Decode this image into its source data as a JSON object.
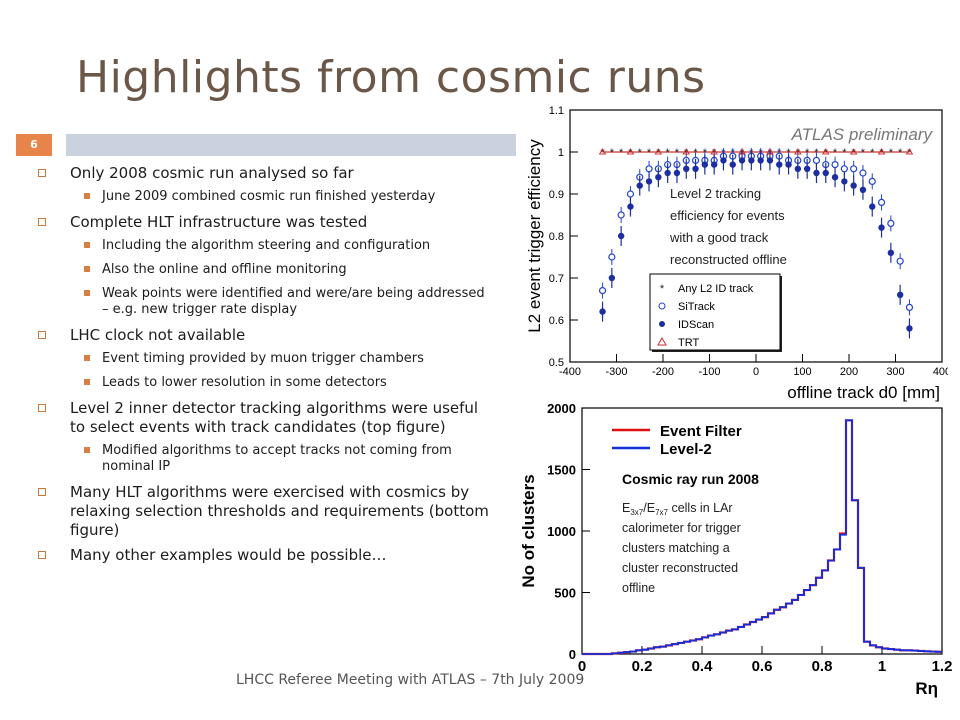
{
  "slide": {
    "title": "Highlights from cosmic runs",
    "page_number": "6",
    "footer": "LHCC Referee Meeting with ATLAS – 7th July 2009",
    "bullets": [
      {
        "text": "Only 2008 cosmic run analysed so far",
        "sub": [
          "June 2009 combined cosmic run finished yesterday"
        ]
      },
      {
        "text": "Complete HLT infrastructure was tested",
        "sub": [
          "Including the algorithm steering and configuration",
          "Also the online and offline monitoring",
          "Weak points were identified and were/are being addressed – e.g. new trigger rate display"
        ]
      },
      {
        "text": "LHC clock not available",
        "sub": [
          "Event timing provided by muon trigger chambers",
          "Leads to lower resolution in some detectors"
        ]
      },
      {
        "text": "Level 2 inner detector tracking algorithms were useful to select events with track candidates (top figure)",
        "sub": [
          "Modified algorithms to accept tracks not coming from nominal IP"
        ]
      },
      {
        "text": "Many HLT algorithms were exercised with cosmics by relaxing selection thresholds and requirements (bottom figure)",
        "sub": []
      },
      {
        "text": "Many other examples would be possible…",
        "sub": []
      }
    ],
    "accent_color": "#e6844a",
    "title_color": "#6b5748"
  },
  "chart_data": [
    {
      "type": "scatter",
      "title": "ATLAS preliminary",
      "xlabel": "offline track d0 [mm]",
      "ylabel": "L2 event trigger efficiency",
      "xlim": [
        -400,
        400
      ],
      "ylim": [
        0.5,
        1.1
      ],
      "x_ticks": [
        "-400",
        "-300",
        "-200",
        "-100",
        "0",
        "100",
        "200",
        "300",
        "400"
      ],
      "y_ticks": [
        "0.5",
        "0.6",
        "0.7",
        "0.8",
        "0.9",
        "1",
        "1.1"
      ],
      "annotation": "Level 2 tracking efficiency for events with a good track reconstructed offline",
      "legend_position": "lower-right",
      "x": [
        -330,
        -310,
        -290,
        -270,
        -250,
        -230,
        -210,
        -190,
        -170,
        -150,
        -130,
        -110,
        -90,
        -70,
        -50,
        -30,
        -10,
        10,
        30,
        50,
        70,
        90,
        110,
        130,
        150,
        170,
        190,
        210,
        230,
        250,
        270,
        290,
        310,
        330
      ],
      "series": [
        {
          "name": "Any L2 ID track",
          "marker": "star",
          "color": "#222222",
          "values": [
            1,
            1,
            1,
            1,
            1,
            1,
            1,
            1,
            1,
            1,
            1,
            1,
            1,
            1,
            1,
            1,
            1,
            1,
            1,
            1,
            1,
            1,
            1,
            1,
            1,
            1,
            1,
            1,
            1,
            1,
            1,
            1,
            1,
            1
          ]
        },
        {
          "name": "SiTrack",
          "marker": "open-circle",
          "color": "#2244cc",
          "values": [
            0.67,
            0.75,
            0.85,
            0.9,
            0.94,
            0.96,
            0.96,
            0.97,
            0.97,
            0.98,
            0.98,
            0.98,
            0.98,
            0.99,
            0.99,
            0.99,
            0.99,
            0.99,
            0.99,
            0.99,
            0.98,
            0.98,
            0.98,
            0.98,
            0.97,
            0.97,
            0.96,
            0.96,
            0.95,
            0.93,
            0.88,
            0.83,
            0.74,
            0.63
          ]
        },
        {
          "name": "IDScan",
          "marker": "filled-circle",
          "color": "#1d2fa0",
          "values": [
            0.62,
            0.7,
            0.8,
            0.87,
            0.92,
            0.93,
            0.94,
            0.95,
            0.95,
            0.96,
            0.96,
            0.97,
            0.97,
            0.98,
            0.97,
            0.98,
            0.98,
            0.98,
            0.98,
            0.97,
            0.97,
            0.96,
            0.96,
            0.95,
            0.95,
            0.94,
            0.93,
            0.92,
            0.91,
            0.87,
            0.82,
            0.76,
            0.66,
            0.58
          ]
        },
        {
          "name": "TRT",
          "marker": "open-triangle",
          "color": "#d03030",
          "values": [
            1,
            1,
            1,
            1,
            1,
            1,
            1,
            1,
            1,
            1,
            1,
            1,
            1,
            1,
            1,
            1,
            1,
            1,
            1,
            1,
            1,
            1,
            1,
            1,
            1,
            1,
            1,
            1,
            1,
            1,
            1,
            1,
            1,
            1
          ]
        }
      ]
    },
    {
      "type": "line",
      "title": "Cosmic ray run 2008",
      "xlabel": "Rη",
      "ylabel": "No of clusters",
      "xlim": [
        0,
        1.2
      ],
      "ylim": [
        0,
        2000
      ],
      "x_ticks": [
        "0",
        "0.2",
        "0.4",
        "0.6",
        "0.8",
        "1",
        "1.2"
      ],
      "y_ticks": [
        "0",
        "500",
        "1000",
        "1500",
        "2000"
      ],
      "annotation_parts": [
        "E",
        "3x7",
        "/E",
        "7x7",
        " cells in LAr calorimeter for trigger clusters matching a cluster reconstructed offline"
      ],
      "legend_position": "top-left",
      "bin_width": 0.02,
      "bin_start": 0.0,
      "series": [
        {
          "name": "Event Filter",
          "color": "#e01010",
          "values": [
            0,
            0,
            0,
            0,
            0,
            5,
            10,
            15,
            20,
            30,
            35,
            45,
            55,
            60,
            70,
            80,
            90,
            100,
            110,
            120,
            135,
            150,
            160,
            175,
            190,
            200,
            220,
            240,
            260,
            280,
            300,
            330,
            360,
            380,
            410,
            440,
            480,
            520,
            560,
            620,
            680,
            760,
            850,
            980,
            1900,
            1250,
            700,
            100,
            70,
            55,
            45,
            40,
            35,
            30,
            30,
            28,
            25,
            22,
            20,
            18
          ]
        },
        {
          "name": "Level-2",
          "color": "#1030e0",
          "values": [
            0,
            0,
            0,
            0,
            0,
            5,
            10,
            15,
            20,
            30,
            35,
            45,
            55,
            60,
            70,
            80,
            90,
            100,
            110,
            120,
            135,
            150,
            160,
            175,
            190,
            200,
            220,
            240,
            260,
            280,
            300,
            330,
            360,
            380,
            410,
            440,
            480,
            520,
            560,
            620,
            680,
            760,
            850,
            970,
            1900,
            1250,
            700,
            100,
            70,
            55,
            45,
            40,
            35,
            30,
            30,
            28,
            25,
            22,
            20,
            18
          ]
        }
      ]
    }
  ]
}
